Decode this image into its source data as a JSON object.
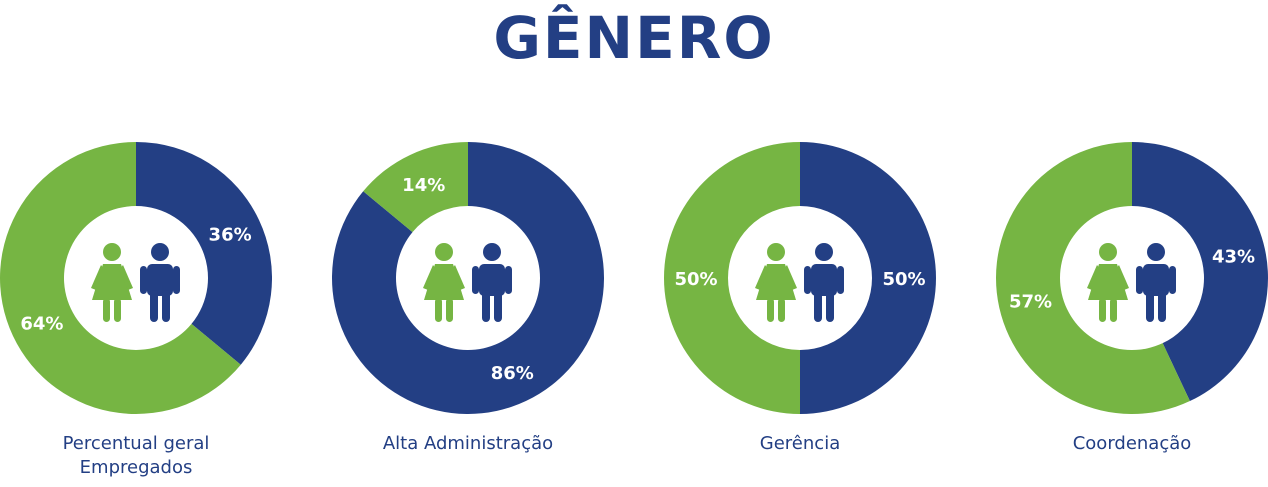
{
  "title": "GÊNERO",
  "colors": {
    "female": "#76b543",
    "male": "#233f84",
    "title": "#233f84"
  },
  "icons": {
    "female": "woman-icon",
    "male": "man-icon"
  },
  "chart_data": [
    {
      "type": "pie",
      "label_lines": [
        "Percentual geral",
        "Empregados"
      ],
      "slices": [
        {
          "category": "female",
          "value": 64,
          "label": "64%"
        },
        {
          "category": "male",
          "value": 36,
          "label": "36%"
        }
      ]
    },
    {
      "type": "pie",
      "label_lines": [
        "Alta Administração"
      ],
      "slices": [
        {
          "category": "female",
          "value": 14,
          "label": "14%"
        },
        {
          "category": "male",
          "value": 86,
          "label": "86%"
        }
      ]
    },
    {
      "type": "pie",
      "label_lines": [
        "Gerência"
      ],
      "slices": [
        {
          "category": "female",
          "value": 50,
          "label": "50%"
        },
        {
          "category": "male",
          "value": 50,
          "label": "50%"
        }
      ]
    },
    {
      "type": "pie",
      "label_lines": [
        "Coordenação"
      ],
      "slices": [
        {
          "category": "female",
          "value": 57,
          "label": "57%"
        },
        {
          "category": "male",
          "value": 43,
          "label": "43%"
        }
      ]
    }
  ]
}
